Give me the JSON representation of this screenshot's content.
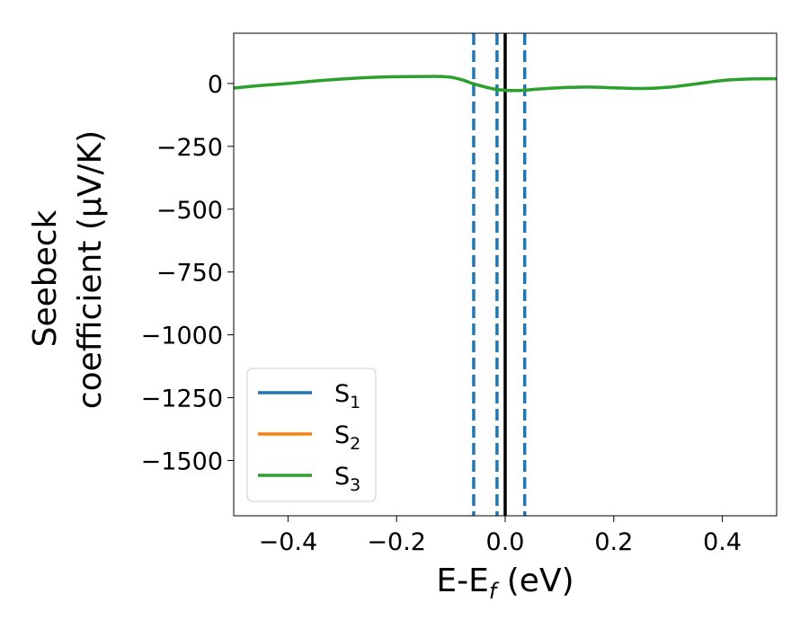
{
  "chart_data": {
    "type": "line",
    "xlabel": "E-E",
    "xlabel_sub": "f",
    "xlabel_unit": " (eV)",
    "ylabel_line1": "Seebeck",
    "ylabel_line2": "coefficient  (μV/K)",
    "xlim": [
      -0.5,
      0.5
    ],
    "ylim": [
      -1720,
      200
    ],
    "xticks": [
      -0.4,
      -0.2,
      0.0,
      0.2,
      0.4
    ],
    "xtick_labels": [
      "−0.4",
      "−0.2",
      "0.0",
      "0.2",
      "0.4"
    ],
    "yticks": [
      0,
      -250,
      -500,
      -750,
      -1000,
      -1250,
      -1500
    ],
    "ytick_labels": [
      "0",
      "−250",
      "−500",
      "−750",
      "−1000",
      "−1250",
      "−1500"
    ],
    "grid": false,
    "legend_position": "lower-left",
    "series": [
      {
        "name": "S",
        "name_sub": "1",
        "color": "#1f77b4",
        "x": [],
        "y": []
      },
      {
        "name": "S",
        "name_sub": "2",
        "color": "#ff7f0e",
        "x": [],
        "y": []
      },
      {
        "name": "S",
        "name_sub": "3",
        "color": "#2ca02c",
        "x": [
          -0.5,
          -0.45,
          -0.4,
          -0.35,
          -0.3,
          -0.25,
          -0.2,
          -0.15,
          -0.12,
          -0.1,
          -0.08,
          -0.06,
          -0.04,
          -0.02,
          0.0,
          0.02,
          0.04,
          0.06,
          0.1,
          0.15,
          0.2,
          0.25,
          0.3,
          0.35,
          0.4,
          0.45,
          0.5
        ],
        "y": [
          -18,
          -8,
          0,
          10,
          18,
          24,
          27,
          28,
          28,
          25,
          15,
          0,
          -12,
          -22,
          -27,
          -28,
          -26,
          -22,
          -17,
          -14,
          -17,
          -20,
          -15,
          -2,
          12,
          18,
          19
        ]
      }
    ],
    "vlines": [
      {
        "x": -0.058,
        "style": "dashed",
        "color": "#1f77b4"
      },
      {
        "x": -0.015,
        "style": "dashed",
        "color": "#1f77b4"
      },
      {
        "x": 0.0,
        "style": "solid",
        "color": "#000000"
      },
      {
        "x": 0.036,
        "style": "dashed",
        "color": "#1f77b4"
      }
    ]
  }
}
